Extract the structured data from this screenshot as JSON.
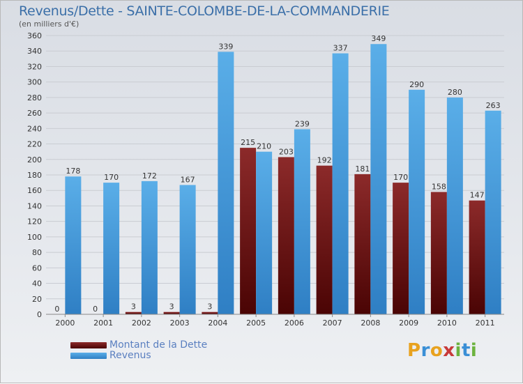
{
  "chart_data": {
    "type": "bar",
    "title": "Revenus/Dette - SAINTE-COLOMBE-DE-LA-COMMANDERIE",
    "subtitle": "(en milliers d'€)",
    "categories": [
      "2000",
      "2001",
      "2002",
      "2003",
      "2004",
      "2005",
      "2006",
      "2007",
      "2008",
      "2009",
      "2010",
      "2011"
    ],
    "series": [
      {
        "name": "Montant de la Dette",
        "color": "#6b0d0d",
        "values": [
          0,
          0,
          3,
          3,
          3,
          215,
          203,
          192,
          181,
          170,
          158,
          147
        ]
      },
      {
        "name": "Revenus",
        "color": "#3a8fd6",
        "values": [
          178,
          170,
          172,
          167,
          339,
          210,
          239,
          337,
          349,
          290,
          280,
          263
        ]
      }
    ],
    "yticks": [
      0,
      20,
      40,
      60,
      80,
      100,
      120,
      140,
      160,
      180,
      200,
      220,
      240,
      260,
      280,
      300,
      320,
      340,
      360
    ],
    "ylim": [
      0,
      360
    ],
    "legend_position": "bottom-left"
  },
  "brand": {
    "letters": [
      "P",
      "r",
      "o",
      "x",
      "i",
      "t",
      "i"
    ],
    "colors": [
      "#e8a21f",
      "#3a8fd6",
      "#e8a21f",
      "#c83a3a",
      "#6db33f",
      "#3a8fd6",
      "#6db33f"
    ]
  }
}
